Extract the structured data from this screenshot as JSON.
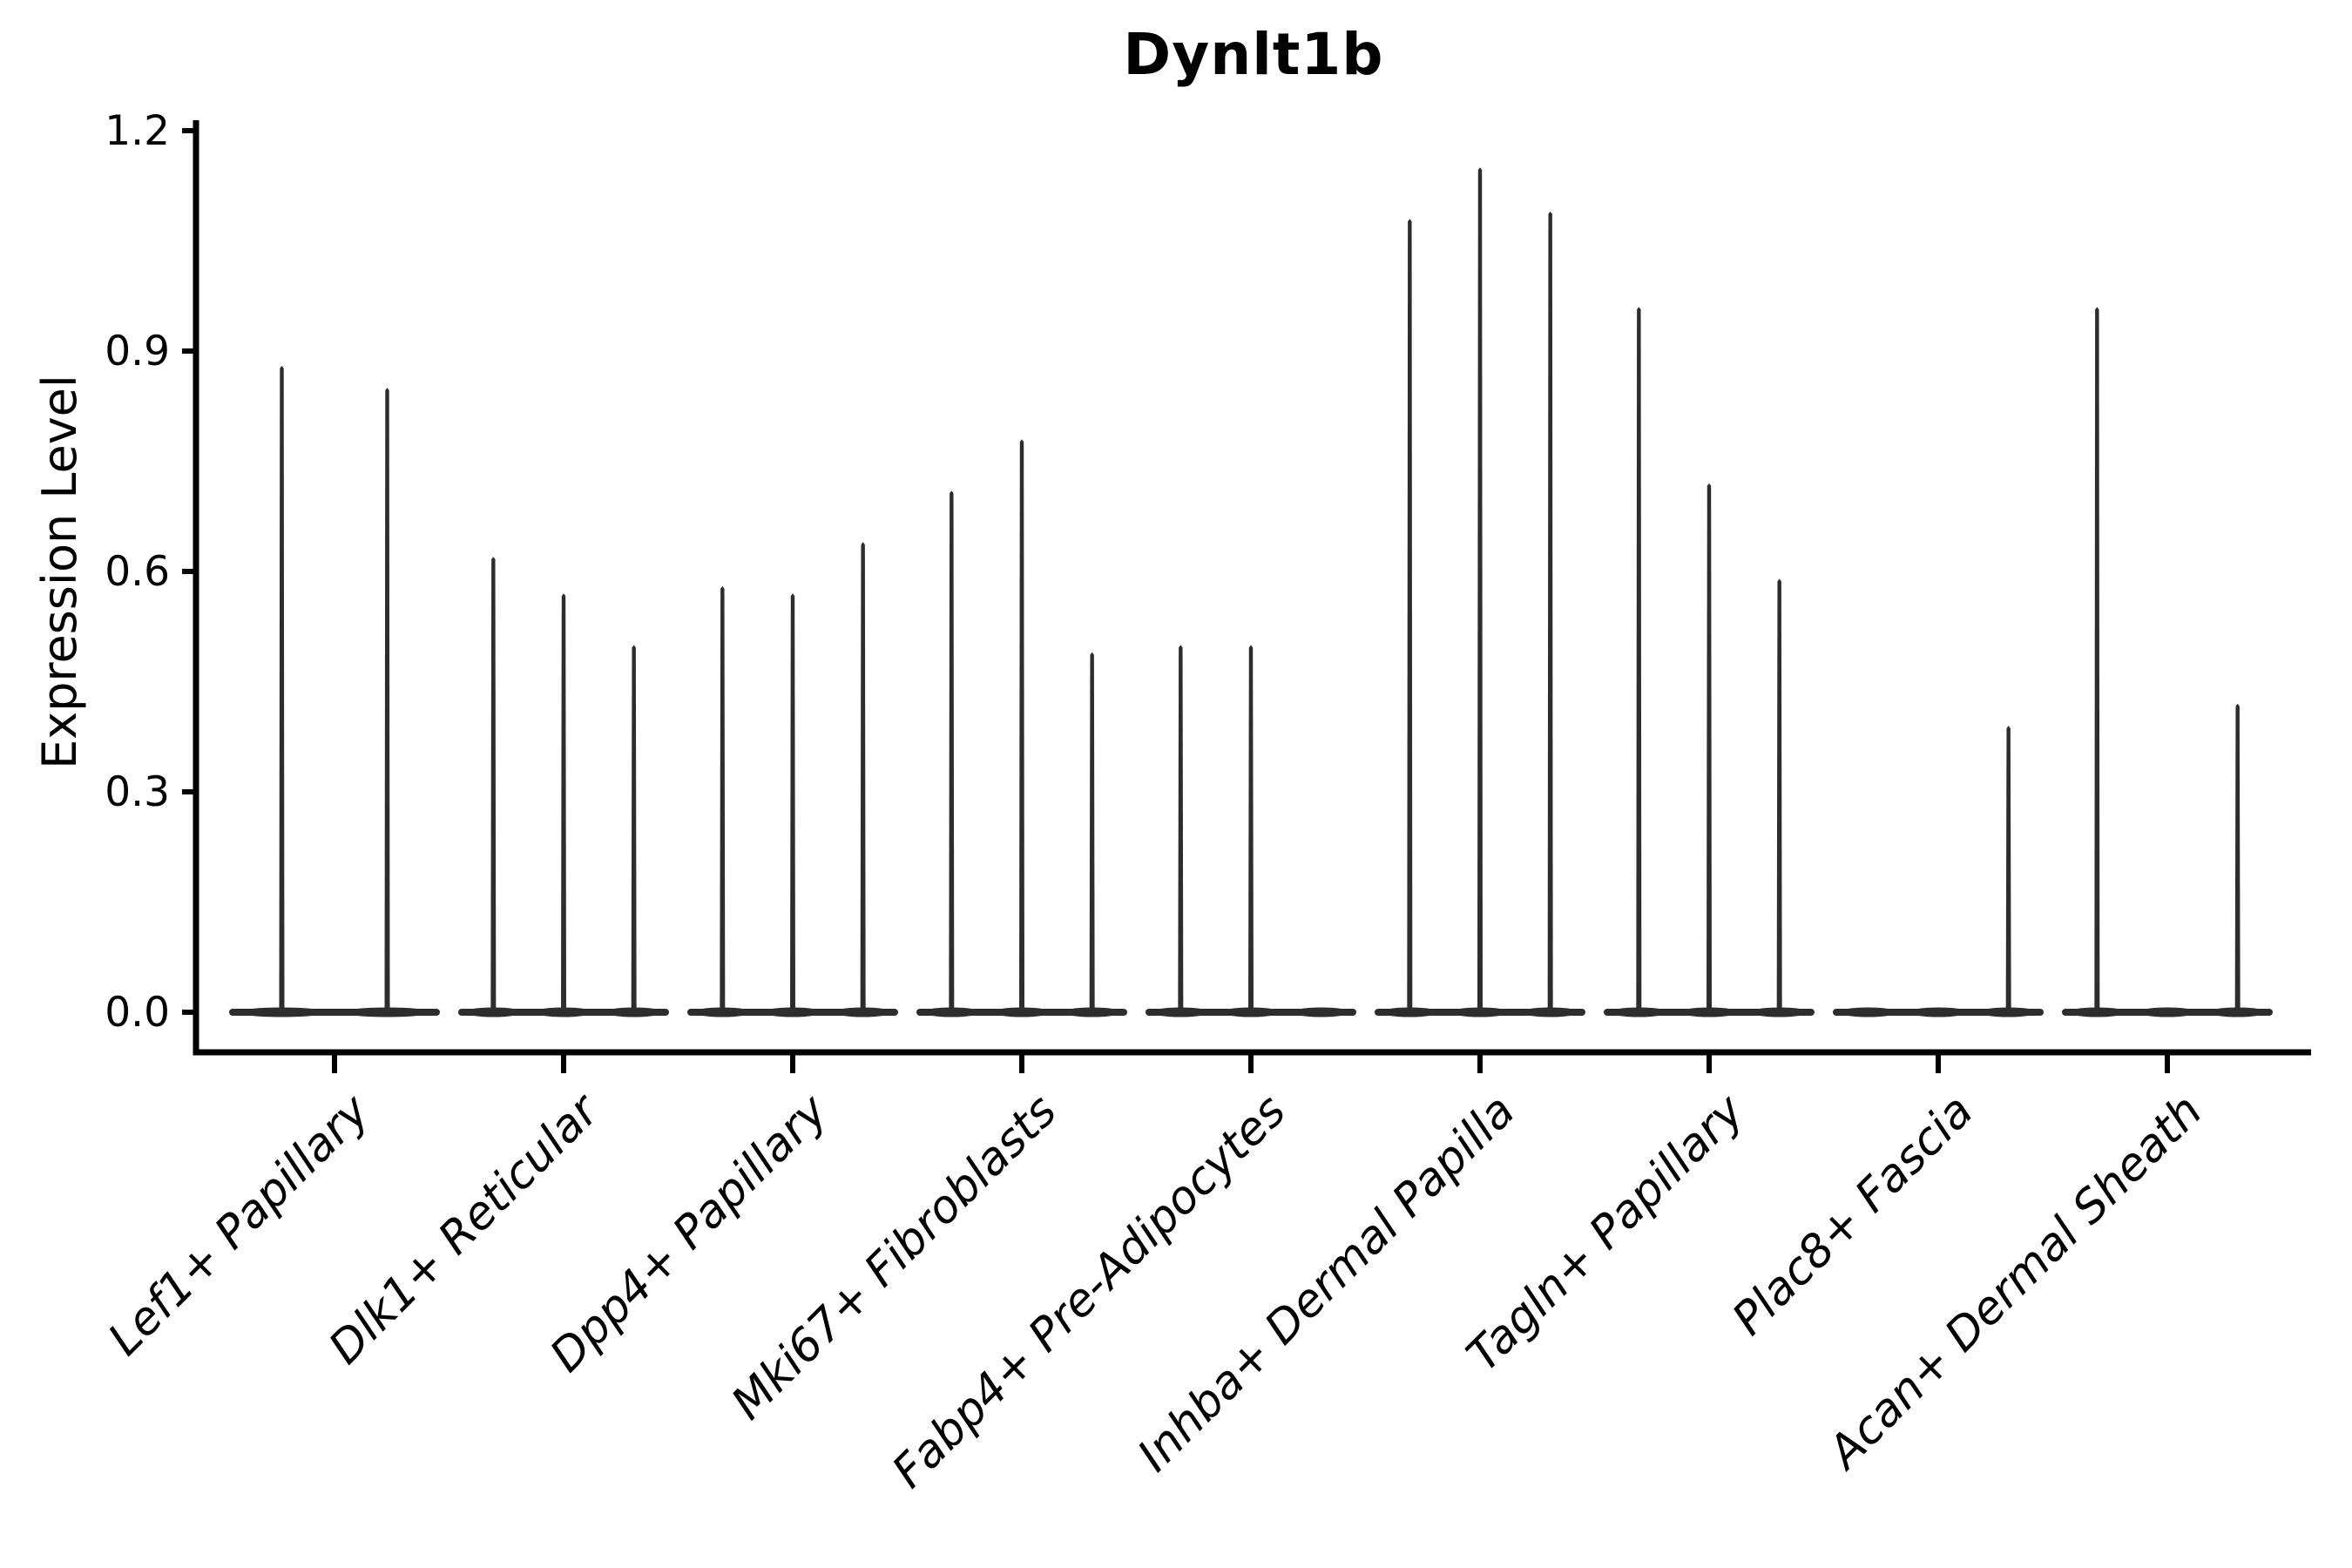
{
  "title": "Dynlt1b",
  "colors": {
    "background": "#ffffff",
    "axis": "#000000",
    "text": "#000000",
    "violin": "#2d2d2d"
  },
  "chart_data": {
    "type": "violin",
    "title": "Dynlt1b",
    "xlabel": "",
    "ylabel": "Expression Level",
    "ylim": [
      0,
      1.2
    ],
    "yticks": [
      0,
      0.3,
      0.6,
      0.9,
      1.2
    ],
    "ytick_labels": [
      "0.0",
      "0.3",
      "0.6",
      "0.9",
      "1.2"
    ],
    "grid": false,
    "legend": "none",
    "xtick_label_style": "italic, rotated 45 degrees, right-anchored",
    "categories": [
      "Lef1+ Papillary",
      "Dlk1+ Reticular",
      "Dpp4+ Papillary",
      "Mki67+ Fibroblasts",
      "Fabp4+ Pre-Adipocytes",
      "Inhba+ Dermal Papilla",
      "Tagln+ Papillary",
      "Plac8+ Fascia",
      "Acan+ Dermal Sheath"
    ],
    "violins_per_category": [
      2,
      3,
      3,
      3,
      3,
      3,
      3,
      3,
      3
    ],
    "violin_max_values": [
      [
        0.88,
        0.85
      ],
      [
        0.62,
        0.57,
        0.5
      ],
      [
        0.58,
        0.57,
        0.64
      ],
      [
        0.71,
        0.78,
        0.49
      ],
      [
        0.5,
        0.5,
        0.0
      ],
      [
        1.08,
        1.15,
        1.09
      ],
      [
        0.96,
        0.72,
        0.59
      ],
      [
        0.0,
        0.0,
        0.39
      ],
      [
        0.96,
        0.0,
        0.42
      ]
    ],
    "note": "Each category shows narrow needle-like violins whose mass sits flat at 0; value is the top of each spike in Expression Level units. A value of 0.0 means the violin is a flat line at the baseline with no spike."
  }
}
